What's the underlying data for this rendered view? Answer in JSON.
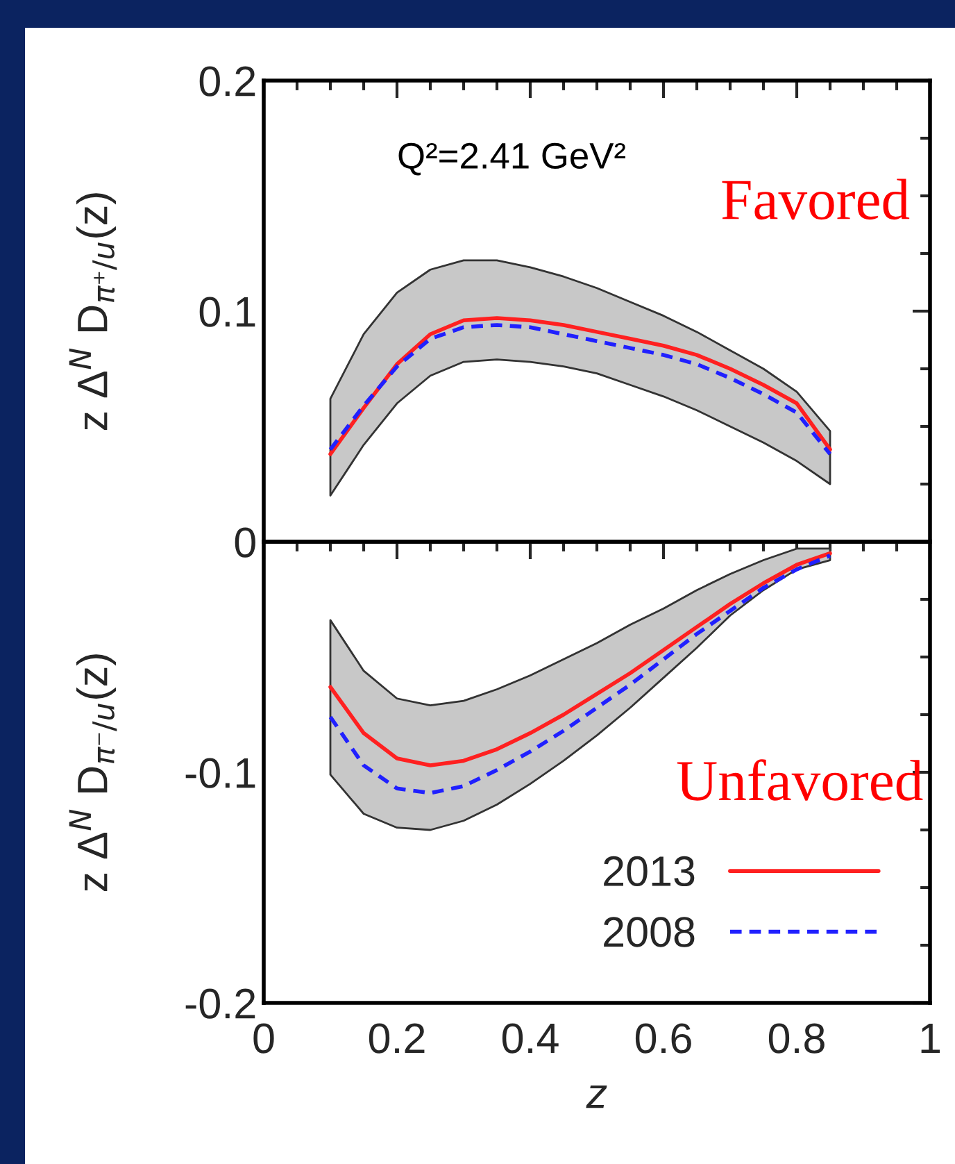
{
  "chart_data": [
    {
      "type": "line",
      "ylabel": "z Δ$^{N}$ D$_{π⁺/u}$(z)",
      "annotations": [
        "Q²=2.41 GeV²",
        "Favored"
      ],
      "xlim": [
        0,
        1
      ],
      "xticks": [
        0,
        0.2,
        0.4,
        0.6,
        0.8,
        1
      ],
      "ylim": [
        0,
        0.2
      ],
      "yticks": [
        0,
        0.1,
        0.2
      ],
      "tick_labels": "y",
      "grid": false,
      "legend": false,
      "x": [
        0.1,
        0.15,
        0.2,
        0.25,
        0.3,
        0.35,
        0.4,
        0.45,
        0.5,
        0.55,
        0.6,
        0.65,
        0.7,
        0.75,
        0.8,
        0.85
      ],
      "series": [
        {
          "color": "#ff2020",
          "line_style": "solid",
          "values": [
            0.038,
            0.058,
            0.077,
            0.09,
            0.096,
            0.097,
            0.096,
            0.094,
            0.091,
            0.088,
            0.085,
            0.081,
            0.075,
            0.068,
            0.06,
            0.04
          ],
          "lower": [
            0.02,
            0.042,
            0.06,
            0.072,
            0.078,
            0.079,
            0.078,
            0.076,
            0.073,
            0.068,
            0.063,
            0.057,
            0.05,
            0.043,
            0.035,
            0.025
          ],
          "upper": [
            0.062,
            0.09,
            0.108,
            0.118,
            0.122,
            0.122,
            0.119,
            0.115,
            0.11,
            0.104,
            0.098,
            0.091,
            0.083,
            0.075,
            0.065,
            0.048
          ]
        },
        {
          "color": "#2020ff",
          "line_style": "dashed",
          "values": [
            0.04,
            0.059,
            0.076,
            0.088,
            0.093,
            0.094,
            0.093,
            0.09,
            0.087,
            0.084,
            0.081,
            0.077,
            0.071,
            0.064,
            0.056,
            0.038
          ]
        }
      ]
    },
    {
      "type": "line",
      "ylabel": "z Δ$^{N}$ D$_{π⁻/u}$(z)",
      "xlabel": "z",
      "annotations": [
        "Unfavored"
      ],
      "xlim": [
        0,
        1
      ],
      "xticks": [
        0,
        0.2,
        0.4,
        0.6,
        0.8,
        1
      ],
      "ylim": [
        -0.2,
        0
      ],
      "yticks": [
        -0.2,
        -0.1,
        {
          "value": 0,
          "label": null
        }
      ],
      "grid": false,
      "legend": "bottom right",
      "x": [
        0.1,
        0.15,
        0.2,
        0.25,
        0.3,
        0.35,
        0.4,
        0.45,
        0.5,
        0.55,
        0.6,
        0.65,
        0.7,
        0.75,
        0.8,
        0.85
      ],
      "series": [
        {
          "name": "2013",
          "color": "#ff2020",
          "line_style": "solid",
          "values": [
            -0.063,
            -0.083,
            -0.094,
            -0.097,
            -0.095,
            -0.09,
            -0.083,
            -0.075,
            -0.066,
            -0.057,
            -0.047,
            -0.037,
            -0.027,
            -0.018,
            -0.01,
            -0.005
          ],
          "lower": [
            -0.101,
            -0.118,
            -0.124,
            -0.125,
            -0.121,
            -0.114,
            -0.105,
            -0.095,
            -0.084,
            -0.072,
            -0.059,
            -0.046,
            -0.032,
            -0.021,
            -0.012,
            -0.008
          ],
          "upper": [
            -0.034,
            -0.056,
            -0.068,
            -0.071,
            -0.069,
            -0.064,
            -0.058,
            -0.051,
            -0.044,
            -0.036,
            -0.029,
            -0.021,
            -0.014,
            -0.008,
            -0.003,
            -0.003
          ]
        },
        {
          "name": "2008",
          "color": "#2020ff",
          "line_style": "dashed",
          "values": [
            -0.076,
            -0.097,
            -0.107,
            -0.109,
            -0.106,
            -0.099,
            -0.091,
            -0.082,
            -0.072,
            -0.062,
            -0.051,
            -0.04,
            -0.03,
            -0.02,
            -0.012,
            -0.006
          ]
        }
      ]
    }
  ]
}
